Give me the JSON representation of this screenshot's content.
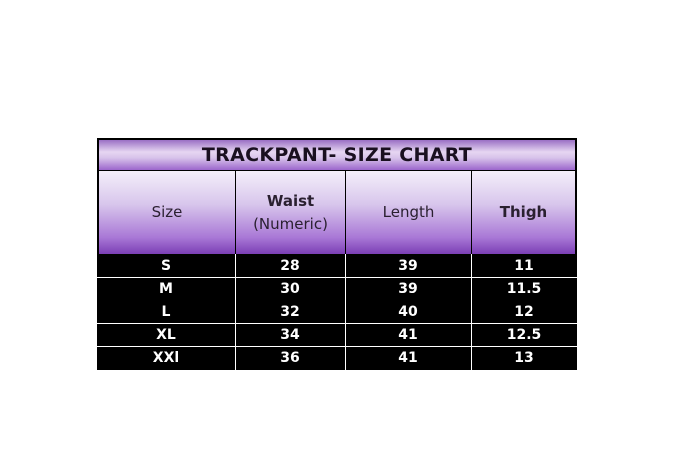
{
  "title": "TRACKPANT- SIZE CHART",
  "headers": [
    "Size",
    "Waist\n(Numeric)",
    "Length",
    "Thigh"
  ],
  "header_waist_line1": "Waist",
  "header_waist_line2": "(Numeric)",
  "rows": [
    [
      "S",
      "28",
      "39",
      "11"
    ],
    [
      "M",
      "30",
      "39",
      "11.5"
    ],
    [
      "L",
      "32",
      "40",
      "12"
    ],
    [
      "XL",
      "34",
      "41",
      "12.5"
    ],
    [
      "XXl",
      "36",
      "41",
      "13"
    ]
  ],
  "colors": {
    "header_purple": "#7b3fb5",
    "body_bg": "#000000",
    "body_text": "#ffffff"
  }
}
